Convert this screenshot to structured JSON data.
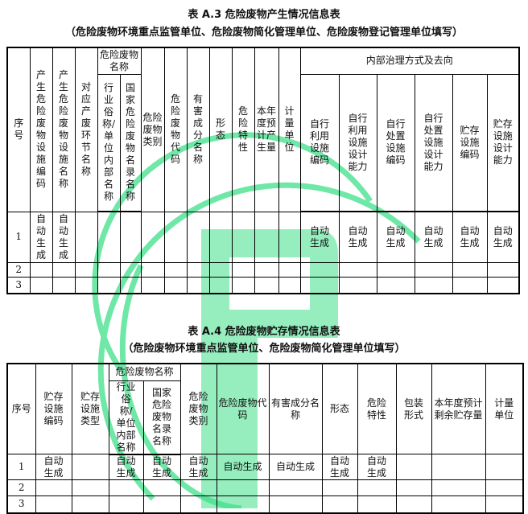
{
  "table_a3": {
    "title": "表 A.3   危险废物产生情况信息表",
    "subtitle": "（危险废物环境重点监管单位、危险废物简化管理单位、危险废物登记管理单位填写）",
    "headers": {
      "seq": "序号",
      "facility_code": "产生危险废物设施编码",
      "facility_name": "产生危险废物设施名称",
      "process_name": "对应产废环节名称",
      "waste_name_group": "危险废物名称",
      "industry_name": "行业俗称/单位内部名称",
      "national_name": "国家危险废物名录名称",
      "category": "危险废物类别",
      "code": "危险废物代码",
      "harmful": "有害成分名称",
      "form": "形态",
      "property": "危险特性",
      "annual": "本年度预计产生量",
      "unit": "计量单位",
      "internal_group": "内部治理方式及去向",
      "use_code": "自行利用设施编码",
      "use_cap": "自行利用设施设计能力",
      "disp_code": "自行处置设施编码",
      "disp_cap": "自行处置设施设计能力",
      "store_code": "贮存设施编码",
      "store_cap": "贮存设施设计能力"
    },
    "rows": [
      {
        "seq": "1",
        "cells": [
          "自动生成",
          "自动生成",
          "",
          "",
          "",
          "",
          "",
          "",
          "",
          "",
          "",
          "",
          "自动生成",
          "自动生成",
          "自动生成",
          "自动生成",
          "自动生成",
          "自动生成"
        ]
      },
      {
        "seq": "2",
        "cells": [
          "",
          "",
          "",
          "",
          "",
          "",
          "",
          "",
          "",
          "",
          "",
          "",
          "",
          "",
          "",
          "",
          "",
          ""
        ]
      },
      {
        "seq": "3",
        "cells": [
          "",
          "",
          "",
          "",
          "",
          "",
          "",
          "",
          "",
          "",
          "",
          "",
          "",
          "",
          "",
          "",
          "",
          ""
        ]
      }
    ]
  },
  "table_a4": {
    "title": "表 A.4   危险废物贮存情况信息表",
    "subtitle": "（危险废物环境重点监管单位、危险废物简化管理单位填写）",
    "headers": {
      "seq": "序号",
      "store_code": "贮存设施编码",
      "store_type": "贮存设施类型",
      "waste_name_group": "危险废物名称",
      "industry_name": "行业俗称/单位内部名称",
      "national_name": "国家危险废物名录名称",
      "category": "危险废物类别",
      "code": "危险废物代码",
      "harmful": "有害成分名称",
      "form": "形态",
      "property": "危险特性",
      "package": "包装形式",
      "remaining": "本年度预计剩余贮存量",
      "unit": "计量单位"
    },
    "rows": [
      {
        "seq": "1",
        "cells": [
          "自动生成",
          "",
          "自动生成",
          "自动生成",
          "自动生成",
          "自动生成",
          "自动生成",
          "自动生成",
          "自动生成",
          "",
          "",
          ""
        ]
      },
      {
        "seq": "2",
        "cells": [
          "",
          "",
          "",
          "",
          "",
          "",
          "",
          "",
          "",
          "",
          "",
          ""
        ]
      },
      {
        "seq": "3",
        "cells": [
          "",
          "",
          "",
          "",
          "",
          "",
          "",
          "",
          "",
          "",
          "",
          ""
        ]
      }
    ]
  },
  "watermark_color": "#2ee27a"
}
